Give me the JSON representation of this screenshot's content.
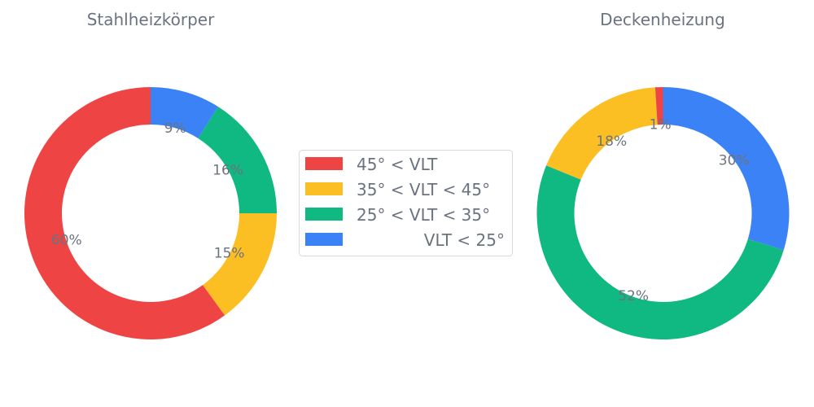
{
  "chart_data": {
    "type": "pie",
    "variant": "donut",
    "legend": {
      "placement": "center",
      "entries": [
        {
          "label": "45° < VLT",
          "color": "#ef4444"
        },
        {
          "label": "35° < VLT < 45°",
          "color": "#fbbf24"
        },
        {
          "label": "25° < VLT < 35°",
          "color": "#10b981"
        },
        {
          "label": "VLT < 25°",
          "color": "#3b82f6"
        }
      ]
    },
    "charts": [
      {
        "title": "Stahlheizkörper",
        "slices": [
          {
            "label": "VLT < 25°",
            "value": 9,
            "text": "9%",
            "color": "#3b82f6"
          },
          {
            "label": "25° < VLT < 35°",
            "value": 16,
            "text": "16%",
            "color": "#10b981"
          },
          {
            "label": "35° < VLT < 45°",
            "value": 15,
            "text": "15%",
            "color": "#fbbf24"
          },
          {
            "label": "45° < VLT",
            "value": 60,
            "text": "60%",
            "color": "#ef4444"
          }
        ]
      },
      {
        "title": "Deckenheizung",
        "slices": [
          {
            "label": "VLT < 25°",
            "value": 30,
            "text": "30%",
            "color": "#3b82f6"
          },
          {
            "label": "25° < VLT < 35°",
            "value": 52,
            "text": "52%",
            "color": "#10b981"
          },
          {
            "label": "35° < VLT < 45°",
            "value": 18,
            "text": "18%",
            "color": "#fbbf24"
          },
          {
            "label": "45° < VLT",
            "value": 1,
            "text": "1%",
            "color": "#ef4444"
          }
        ]
      }
    ]
  }
}
